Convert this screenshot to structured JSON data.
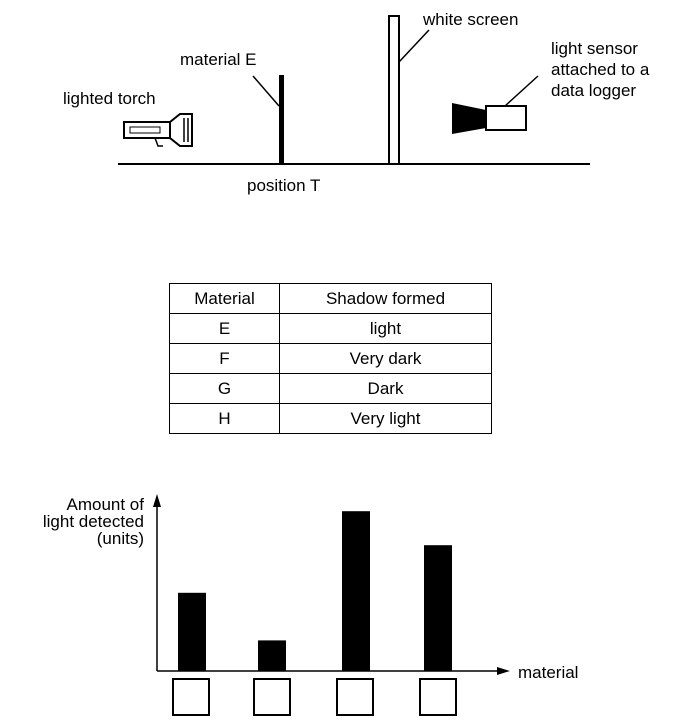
{
  "setup": {
    "torch_label": "lighted torch",
    "material_label": "material E",
    "screen_label": "white screen",
    "sensor_label_lines": [
      "light sensor",
      "attached to a",
      "data logger"
    ],
    "position_label": "position T"
  },
  "table": {
    "headers": [
      "Material",
      "Shadow formed"
    ],
    "rows": [
      {
        "material": "E",
        "shadow": "light"
      },
      {
        "material": "F",
        "shadow": "Very dark"
      },
      {
        "material": "G",
        "shadow": "Dark"
      },
      {
        "material": "H",
        "shadow": "Very light"
      }
    ]
  },
  "chart_data": {
    "type": "bar",
    "title": "",
    "ylabel_lines": [
      "Amount of",
      "light detected",
      "(units)"
    ],
    "xlabel": "material",
    "categories": [
      "",
      "",
      "",
      ""
    ],
    "values": [
      46,
      18,
      94,
      74
    ],
    "ylim": [
      0,
      100
    ],
    "grid": false,
    "bar_color": "#000000"
  }
}
